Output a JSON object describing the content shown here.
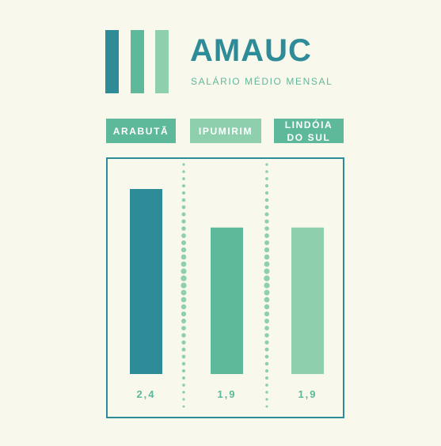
{
  "header": {
    "title": "AMAUC",
    "subtitle": "SALÁRIO MÉDIO MENSAL"
  },
  "colors": {
    "background": "#f9f8ed",
    "teal": "#2e8b98",
    "green": "#5eb89a",
    "mint": "#8ecfae"
  },
  "labels": [
    "ARABUTÃ",
    "IPUMIRIM",
    "LINDÓIA DO SUL"
  ],
  "value_labels": [
    "2,4",
    "1,9",
    "1,9"
  ],
  "chart_data": {
    "type": "bar",
    "categories": [
      "ARABUTÃ",
      "IPUMIRIM",
      "LINDÓIA DO SUL"
    ],
    "values": [
      2.4,
      1.9,
      1.9
    ],
    "ylim": [
      0,
      2.8
    ],
    "grid": false
  }
}
